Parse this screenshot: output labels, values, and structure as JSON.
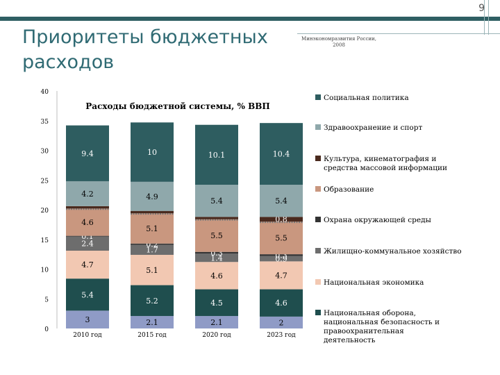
{
  "slide_number": "9",
  "title": "Приоритеты бюджетных расходов",
  "source": "Минэкономразвития России, 2008",
  "chart_data": {
    "type": "bar",
    "stacked": true,
    "title": "Расходы бюджетной системы, % ВВП",
    "xlabel": "",
    "ylabel": "",
    "ylim": [
      0,
      40
    ],
    "yticks": [
      "0",
      "5",
      "10",
      "15",
      "20",
      "25",
      "30",
      "35",
      "40"
    ],
    "categories": [
      "2010 год",
      "2015 год",
      "2020 год",
      "2023 год"
    ],
    "legend_position": "right",
    "series": [
      {
        "name": "Национальная оборона, национальная безопасность и правоохранительная деятельность",
        "color": "#8f9bc6",
        "text_color": "#000000",
        "values": [
          3,
          2.1,
          2.1,
          2
        ],
        "labels": [
          "3",
          "2.1",
          "2.1",
          "2"
        ]
      },
      {
        "name": "Национальная экономика",
        "color": "#1f4e4e",
        "text_color": "#ffffff",
        "values": [
          5.4,
          5.2,
          4.5,
          4.6
        ],
        "labels": [
          "5.4",
          "5.2",
          "4.5",
          "4.6"
        ]
      },
      {
        "name": "Жилищно-коммунальное хозяйство",
        "color": "#f2c8b2",
        "text_color": "#000000",
        "values": [
          4.7,
          5.1,
          4.6,
          4.7
        ],
        "labels": [
          "4.7",
          "5.1",
          "4.6",
          "4.7"
        ]
      },
      {
        "name": "Охрана окружающей среды",
        "color": "#6d6d6d",
        "text_color": "#ffffff",
        "values": [
          2.4,
          1.7,
          1.4,
          0.9
        ],
        "labels": [
          "2.4",
          "1.7",
          "1.4",
          "0.9"
        ]
      },
      {
        "name": "Образование",
        "color": "#333333",
        "text_color": "#ffffff",
        "values": [
          0.1,
          0.2,
          0.3,
          0.3
        ],
        "labels": [
          "0.1",
          "0.2",
          "0.3",
          "0.3"
        ]
      },
      {
        "name": "Культура, кинематография и средства массовой информации",
        "color": "#c9977f",
        "text_color": "#000000",
        "values": [
          4.6,
          5.1,
          5.5,
          5.5
        ],
        "labels": [
          "4.6",
          "5.1",
          "5.5",
          "5.5"
        ]
      },
      {
        "name": "Здравоохранение и спорт",
        "color": "#4a2a1e",
        "text_color": "#ffffff",
        "values": [
          0.4,
          0.4,
          0.4,
          0.8
        ],
        "labels": [
          "",
          "",
          "",
          "0.8"
        ]
      },
      {
        "name": "Социальная политика",
        "color": "#8fa8ab",
        "text_color": "#000000",
        "values": [
          4.2,
          4.9,
          5.4,
          5.4
        ],
        "labels": [
          "4.2",
          "4.9",
          "5.4",
          "5.4"
        ]
      },
      {
        "name": "",
        "color": "#2e5d60",
        "text_color": "#ffffff",
        "values": [
          9.4,
          10,
          10.1,
          10.4
        ],
        "labels": [
          "9.4",
          "10",
          "10.1",
          "10.4"
        ]
      }
    ],
    "legend": [
      {
        "label": "Социальная политика",
        "color": "#2e5d60"
      },
      {
        "label": "Здравоохранение и спорт",
        "color": "#8fa8ab"
      },
      {
        "label": "Культура, кинематография и средства массовой информации",
        "color": "#4a2a1e"
      },
      {
        "label": "Образование",
        "color": "#c9977f"
      },
      {
        "label": "Охрана окружающей среды",
        "color": "#333333"
      },
      {
        "label": "Жилищно-коммунальное хозяйство",
        "color": "#6d6d6d"
      },
      {
        "label": "Национальная экономика",
        "color": "#f2c8b2"
      },
      {
        "label": "Национальная оборона, национальная безопасность и правоохранительная деятельность",
        "color": "#1f4e4e"
      }
    ]
  }
}
